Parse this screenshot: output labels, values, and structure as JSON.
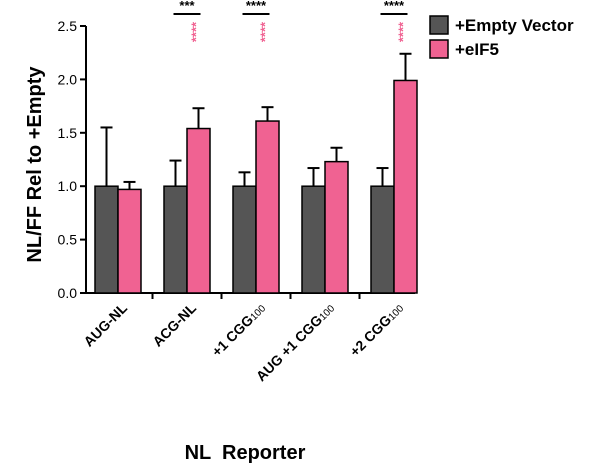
{
  "chart_data": {
    "type": "bar",
    "title": "",
    "xlabel": "NL  Reporter",
    "ylabel": "NL/FF Rel to +Empty",
    "ylim": [
      0,
      2.5
    ],
    "yticks": [
      "0.0",
      "0.5",
      "1.0",
      "1.5",
      "2.0",
      "2.5"
    ],
    "yticks_values": [
      0,
      0.5,
      1.0,
      1.5,
      2.0,
      2.5
    ],
    "categories": [
      {
        "main": "AUG-NL",
        "sub": ""
      },
      {
        "main": "ACG-NL",
        "sub": ""
      },
      {
        "main": "+1 CGG",
        "sub": "100"
      },
      {
        "main": "AUG +1 CGG",
        "sub": "100"
      },
      {
        "main": "+2 CGG",
        "sub": "100"
      }
    ],
    "series": [
      {
        "name": "+Empty Vector",
        "color": "#555555",
        "values": [
          1.0,
          1.0,
          1.0,
          1.0,
          1.0
        ],
        "errors": [
          0.55,
          0.24,
          0.13,
          0.17,
          0.17
        ]
      },
      {
        "name": "+eIF5",
        "color": "#f06292",
        "values": [
          0.97,
          1.54,
          1.61,
          1.23,
          1.99
        ],
        "errors": [
          0.07,
          0.19,
          0.13,
          0.13,
          0.25
        ]
      }
    ],
    "legend": "top-right",
    "grid": false,
    "significance": {
      "brackets": [
        {
          "category_index": 1,
          "label": "***"
        },
        {
          "category_index": 2,
          "label": "****"
        },
        {
          "category_index": 4,
          "label": "****"
        }
      ],
      "stars": [
        {
          "category_index": 1,
          "series_index": 1,
          "label": "****",
          "color": "#f06292"
        },
        {
          "category_index": 2,
          "series_index": 1,
          "label": "****",
          "color": "#f06292"
        },
        {
          "category_index": 4,
          "series_index": 1,
          "label": "****",
          "color": "#f06292"
        }
      ]
    }
  }
}
